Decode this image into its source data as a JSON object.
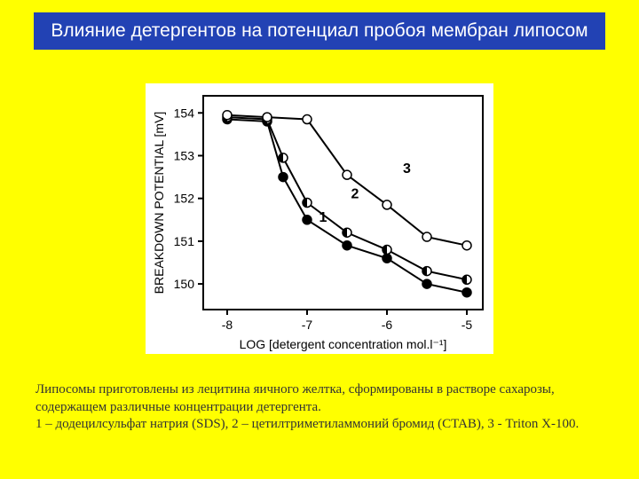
{
  "page": {
    "background_color": "#ffff00"
  },
  "title": {
    "text": "Влияние детергентов на потенциал пробоя мембран липосом",
    "background_color": "#2242b4",
    "color": "#ffffff",
    "fontsize": 21
  },
  "chart": {
    "type": "line",
    "panel_background": "#ffffff",
    "plot_border_color": "#000000",
    "plot_border_width": 2,
    "axis_color": "#000000",
    "xlabel": "LOG  [detergent concentration  mol.l⁻¹]",
    "ylabel": "BREAKDOWN  POTENTIAL  [mV]",
    "label_fontsize": 14,
    "tick_fontsize": 14,
    "xlim": [
      -8.3,
      -4.8
    ],
    "ylim": [
      149.4,
      154.4
    ],
    "xticks": [
      -8,
      -7,
      -6,
      -5
    ],
    "yticks": [
      150,
      151,
      152,
      153,
      154
    ],
    "marker_radius": 5,
    "line_width": 2,
    "series": [
      {
        "id": "1",
        "label": "1",
        "label_xy": [
          -6.85,
          151.45
        ],
        "marker": "filled",
        "marker_fill": "#000000",
        "marker_stroke": "#000000",
        "line_color": "#000000",
        "points": [
          [
            -8.0,
            153.85
          ],
          [
            -7.5,
            153.8
          ],
          [
            -7.3,
            152.5
          ],
          [
            -7.0,
            151.5
          ],
          [
            -6.5,
            150.9
          ],
          [
            -6.0,
            150.6
          ],
          [
            -5.5,
            150.0
          ],
          [
            -5.0,
            149.8
          ]
        ]
      },
      {
        "id": "2",
        "label": "2",
        "label_xy": [
          -6.45,
          152.0
        ],
        "marker": "half",
        "marker_fill": "#000000",
        "marker_stroke": "#000000",
        "line_color": "#000000",
        "points": [
          [
            -8.0,
            153.9
          ],
          [
            -7.5,
            153.85
          ],
          [
            -7.3,
            152.95
          ],
          [
            -7.0,
            151.9
          ],
          [
            -6.5,
            151.2
          ],
          [
            -6.0,
            150.8
          ],
          [
            -5.5,
            150.3
          ],
          [
            -5.0,
            150.1
          ]
        ]
      },
      {
        "id": "3",
        "label": "3",
        "label_xy": [
          -5.8,
          152.6
        ],
        "marker": "open",
        "marker_fill": "#ffffff",
        "marker_stroke": "#000000",
        "line_color": "#000000",
        "points": [
          [
            -8.0,
            153.95
          ],
          [
            -7.5,
            153.9
          ],
          [
            -7.0,
            153.85
          ],
          [
            -6.5,
            152.55
          ],
          [
            -6.0,
            151.85
          ],
          [
            -5.5,
            151.1
          ],
          [
            -5.0,
            150.9
          ]
        ]
      }
    ]
  },
  "caption": {
    "text1": "Липосомы приготовлены из лецитина яичного желтка, сформированы в растворе сахарозы, содержащем различные концентрации детергента.",
    "text2": "1 – додецилсульфат натрия (SDS), 2 – цетилтриметиламмоний бромид (CTAB), 3 - Triton X-100.",
    "color": "#333333",
    "fontsize": 15
  }
}
